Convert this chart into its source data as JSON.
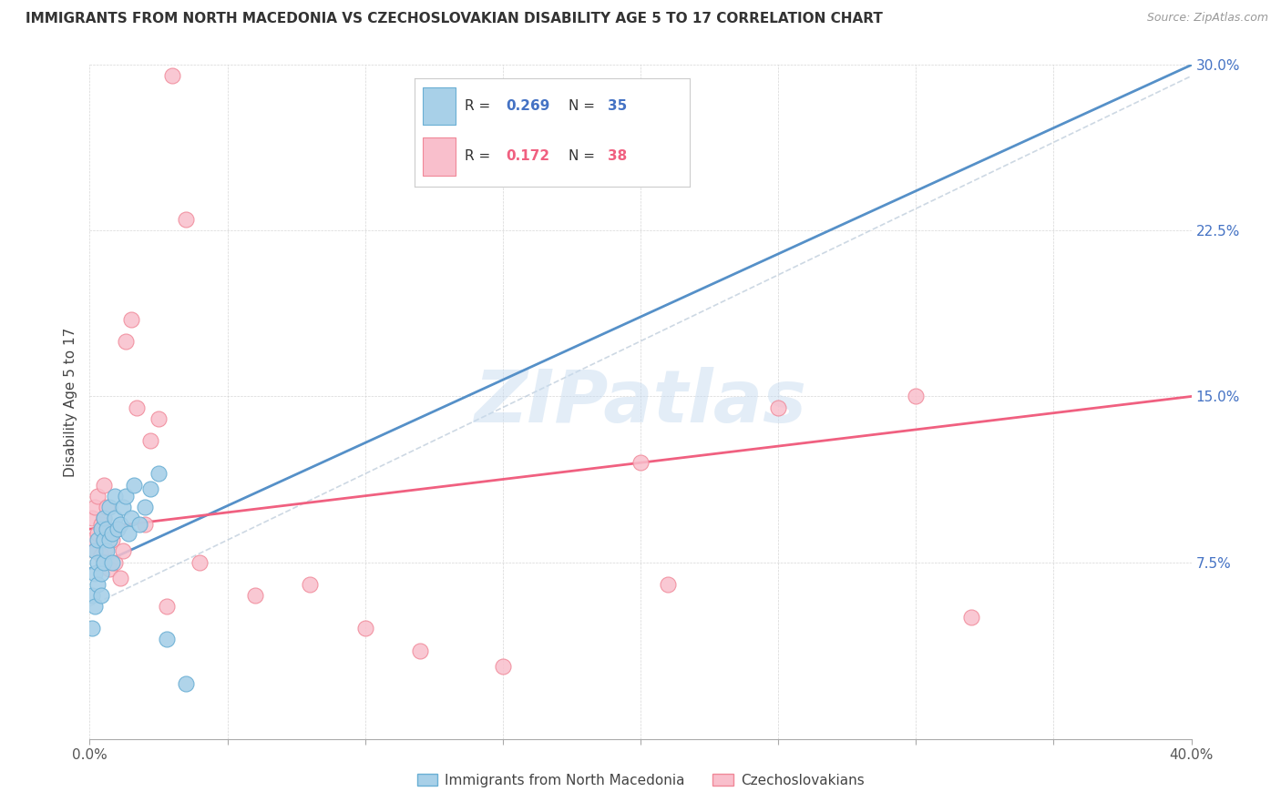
{
  "title": "IMMIGRANTS FROM NORTH MACEDONIA VS CZECHOSLOVAKIAN DISABILITY AGE 5 TO 17 CORRELATION CHART",
  "source": "Source: ZipAtlas.com",
  "ylabel": "Disability Age 5 to 17",
  "xlim": [
    0.0,
    0.4
  ],
  "ylim": [
    -0.005,
    0.3
  ],
  "x_only_labels": [
    "0.0%",
    "40.0%"
  ],
  "ytick_vals": [
    0.075,
    0.15,
    0.225,
    0.3
  ],
  "ytick_labels": [
    "7.5%",
    "15.0%",
    "22.5%",
    "30.0%"
  ],
  "blue_R": 0.269,
  "blue_N": 35,
  "pink_R": 0.172,
  "pink_N": 38,
  "blue_color": "#A8D0E8",
  "pink_color": "#F9BFCC",
  "blue_edge": "#6AAFD4",
  "pink_edge": "#F08898",
  "trend_blue_color": "#5590C8",
  "trend_pink_color": "#F06080",
  "trend_gray_color": "#B8C8D8",
  "watermark_color": "#C8DCF0",
  "watermark": "ZIPatlas",
  "legend_label_blue": "Immigrants from North Macedonia",
  "legend_label_pink": "Czechoslovakians",
  "blue_scatter_x": [
    0.001,
    0.001,
    0.002,
    0.002,
    0.002,
    0.003,
    0.003,
    0.003,
    0.004,
    0.004,
    0.004,
    0.005,
    0.005,
    0.005,
    0.006,
    0.006,
    0.007,
    0.007,
    0.008,
    0.008,
    0.009,
    0.009,
    0.01,
    0.011,
    0.012,
    0.013,
    0.014,
    0.015,
    0.016,
    0.018,
    0.02,
    0.022,
    0.025,
    0.028,
    0.035
  ],
  "blue_scatter_y": [
    0.06,
    0.045,
    0.055,
    0.07,
    0.08,
    0.065,
    0.075,
    0.085,
    0.06,
    0.07,
    0.09,
    0.075,
    0.085,
    0.095,
    0.08,
    0.09,
    0.085,
    0.1,
    0.075,
    0.088,
    0.095,
    0.105,
    0.09,
    0.092,
    0.1,
    0.105,
    0.088,
    0.095,
    0.11,
    0.092,
    0.1,
    0.108,
    0.115,
    0.04,
    0.02
  ],
  "pink_scatter_x": [
    0.001,
    0.001,
    0.002,
    0.002,
    0.003,
    0.003,
    0.004,
    0.004,
    0.005,
    0.005,
    0.006,
    0.006,
    0.007,
    0.008,
    0.009,
    0.01,
    0.011,
    0.012,
    0.013,
    0.015,
    0.017,
    0.02,
    0.022,
    0.025,
    0.028,
    0.03,
    0.035,
    0.04,
    0.06,
    0.08,
    0.1,
    0.12,
    0.15,
    0.2,
    0.21,
    0.25,
    0.3,
    0.32
  ],
  "pink_scatter_y": [
    0.085,
    0.095,
    0.08,
    0.1,
    0.088,
    0.105,
    0.078,
    0.092,
    0.095,
    0.11,
    0.082,
    0.1,
    0.072,
    0.085,
    0.075,
    0.09,
    0.068,
    0.08,
    0.175,
    0.185,
    0.145,
    0.092,
    0.13,
    0.14,
    0.055,
    0.295,
    0.23,
    0.075,
    0.06,
    0.065,
    0.045,
    0.035,
    0.028,
    0.12,
    0.065,
    0.145,
    0.15,
    0.05
  ],
  "blue_trend_x0": 0.0,
  "blue_trend_y0": 0.072,
  "blue_trend_x1": 0.4,
  "blue_trend_y1": 0.3,
  "pink_trend_x0": 0.0,
  "pink_trend_y0": 0.09,
  "pink_trend_x1": 0.4,
  "pink_trend_y1": 0.15
}
